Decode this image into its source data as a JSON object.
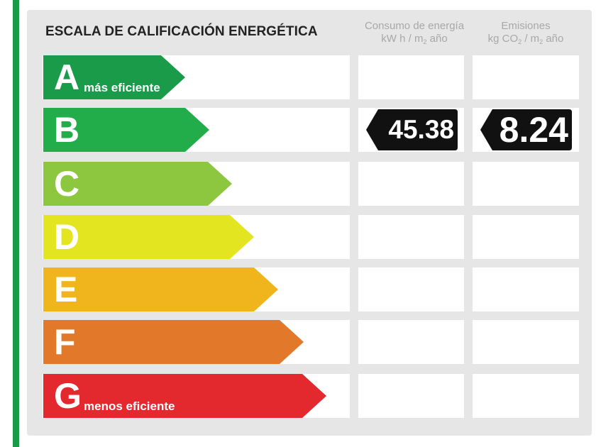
{
  "title": "ESCALA DE CALIFICACIÓN ENERGÉTICA",
  "columns": {
    "consumo": {
      "label": "Consumo de energía",
      "unit_pre": "kW h / m",
      "unit_sub": "2",
      "unit_post": " año"
    },
    "emisiones": {
      "label": "Emisiones",
      "unit_pre": "kg CO",
      "unit_sub": "2",
      "unit_mid": " / m",
      "unit_sub2": "2",
      "unit_post": " año"
    }
  },
  "ratings": [
    {
      "letter": "A",
      "label": "más eficiente",
      "color": "#1a9b4a"
    },
    {
      "letter": "B",
      "label": "",
      "color": "#23ad4a"
    },
    {
      "letter": "C",
      "label": "",
      "color": "#8dc63f"
    },
    {
      "letter": "D",
      "label": "",
      "color": "#e3e521"
    },
    {
      "letter": "E",
      "label": "",
      "color": "#f0b41c"
    },
    {
      "letter": "F",
      "label": "",
      "color": "#e2792a"
    },
    {
      "letter": "G",
      "label": "menos eficiente",
      "color": "#e3292d"
    }
  ],
  "current_rating": "B",
  "consumo_value": "45.38",
  "emisiones_value": "8.24",
  "accent_color": "#1a9b4a"
}
